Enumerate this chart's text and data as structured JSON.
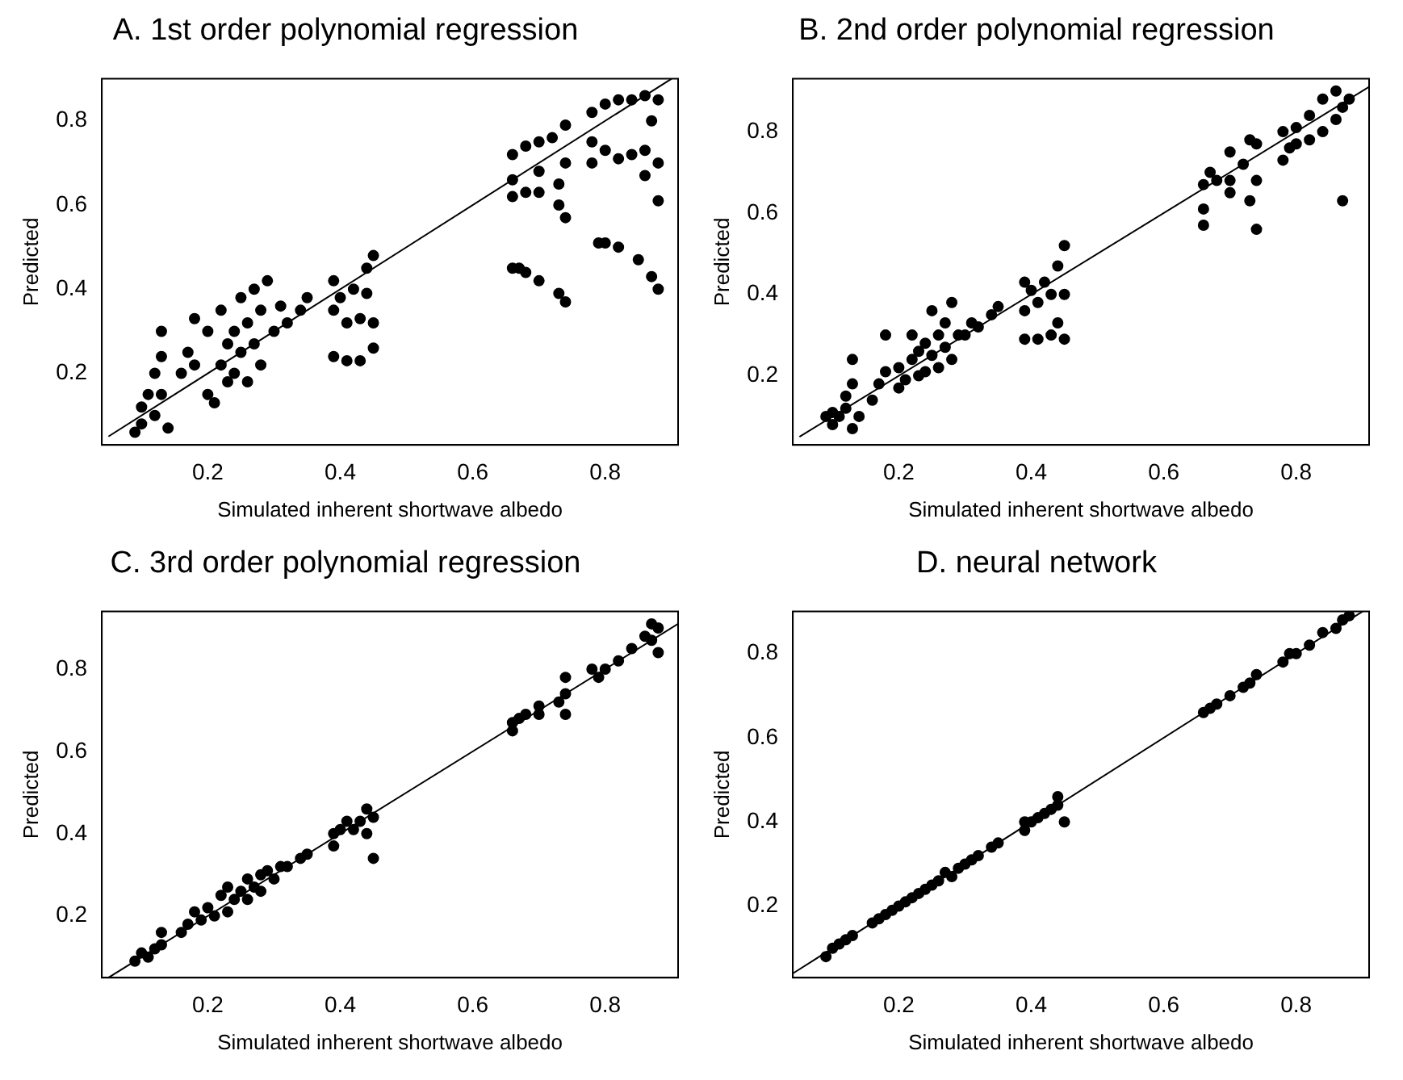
{
  "chart_data": [
    {
      "type": "scatter",
      "title": "A. 1st order polynomial regression",
      "xlabel": "Simulated inherent shortwave albedo",
      "ylabel": "Predicted",
      "xlim": [
        0.04,
        0.91
      ],
      "ylim": [
        0.03,
        0.9
      ],
      "xticks": [
        0.2,
        0.4,
        0.6,
        0.8
      ],
      "yticks": [
        0.2,
        0.4,
        0.6,
        0.8
      ],
      "grid": false,
      "legend": false,
      "marker": "circle",
      "series": [
        {
          "type": "scatter",
          "color": "#000000",
          "x": [
            0.09,
            0.1,
            0.1,
            0.11,
            0.12,
            0.12,
            0.13,
            0.13,
            0.13,
            0.14,
            0.16,
            0.17,
            0.18,
            0.18,
            0.2,
            0.2,
            0.21,
            0.22,
            0.22,
            0.23,
            0.23,
            0.24,
            0.24,
            0.25,
            0.25,
            0.26,
            0.26,
            0.27,
            0.27,
            0.28,
            0.28,
            0.29,
            0.3,
            0.31,
            0.32,
            0.34,
            0.35,
            0.39,
            0.39,
            0.39,
            0.4,
            0.41,
            0.41,
            0.42,
            0.43,
            0.43,
            0.44,
            0.44,
            0.45,
            0.45,
            0.45,
            0.66,
            0.66,
            0.66,
            0.66,
            0.67,
            0.68,
            0.68,
            0.68,
            0.7,
            0.7,
            0.7,
            0.7,
            0.72,
            0.73,
            0.73,
            0.73,
            0.74,
            0.74,
            0.74,
            0.74,
            0.78,
            0.78,
            0.78,
            0.79,
            0.8,
            0.8,
            0.8,
            0.82,
            0.82,
            0.82,
            0.84,
            0.84,
            0.85,
            0.86,
            0.86,
            0.86,
            0.87,
            0.87,
            0.88,
            0.88,
            0.88,
            0.88
          ],
          "values": [
            0.06,
            0.08,
            0.12,
            0.15,
            0.2,
            0.1,
            0.3,
            0.24,
            0.15,
            0.07,
            0.2,
            0.25,
            0.33,
            0.22,
            0.3,
            0.15,
            0.13,
            0.22,
            0.35,
            0.27,
            0.18,
            0.3,
            0.2,
            0.38,
            0.25,
            0.18,
            0.32,
            0.4,
            0.27,
            0.35,
            0.22,
            0.42,
            0.3,
            0.36,
            0.32,
            0.35,
            0.38,
            0.42,
            0.35,
            0.24,
            0.38,
            0.32,
            0.23,
            0.4,
            0.33,
            0.23,
            0.45,
            0.39,
            0.48,
            0.32,
            0.26,
            0.72,
            0.66,
            0.62,
            0.45,
            0.45,
            0.74,
            0.63,
            0.44,
            0.75,
            0.68,
            0.63,
            0.42,
            0.76,
            0.65,
            0.6,
            0.39,
            0.79,
            0.7,
            0.57,
            0.37,
            0.82,
            0.75,
            0.7,
            0.51,
            0.84,
            0.73,
            0.51,
            0.85,
            0.71,
            0.5,
            0.85,
            0.72,
            0.47,
            0.86,
            0.73,
            0.67,
            0.43,
            0.8,
            0.85,
            0.7,
            0.61,
            0.4
          ]
        },
        {
          "type": "line",
          "marker": "none",
          "color": "#000000",
          "x": [
            0.05,
            0.9
          ],
          "values": [
            0.05,
            0.9
          ]
        }
      ]
    },
    {
      "type": "scatter",
      "title": "B. 2nd order polynomial regression",
      "xlabel": "Simulated inherent shortwave albedo",
      "ylabel": "Predicted",
      "xlim": [
        0.04,
        0.91
      ],
      "ylim": [
        0.03,
        0.93
      ],
      "xticks": [
        0.2,
        0.4,
        0.6,
        0.8
      ],
      "yticks": [
        0.2,
        0.4,
        0.6,
        0.8
      ],
      "grid": false,
      "legend": false,
      "marker": "circle",
      "series": [
        {
          "type": "scatter",
          "color": "#000000",
          "x": [
            0.09,
            0.1,
            0.1,
            0.11,
            0.12,
            0.12,
            0.13,
            0.13,
            0.13,
            0.14,
            0.16,
            0.17,
            0.18,
            0.18,
            0.2,
            0.2,
            0.21,
            0.22,
            0.22,
            0.23,
            0.23,
            0.24,
            0.24,
            0.25,
            0.25,
            0.26,
            0.26,
            0.27,
            0.27,
            0.28,
            0.28,
            0.29,
            0.3,
            0.31,
            0.32,
            0.34,
            0.35,
            0.39,
            0.39,
            0.39,
            0.4,
            0.41,
            0.41,
            0.42,
            0.43,
            0.43,
            0.44,
            0.44,
            0.45,
            0.45,
            0.45,
            0.66,
            0.66,
            0.66,
            0.67,
            0.68,
            0.7,
            0.7,
            0.7,
            0.72,
            0.73,
            0.73,
            0.74,
            0.74,
            0.74,
            0.78,
            0.78,
            0.79,
            0.8,
            0.8,
            0.82,
            0.82,
            0.84,
            0.84,
            0.86,
            0.86,
            0.87,
            0.87,
            0.88
          ],
          "values": [
            0.1,
            0.11,
            0.08,
            0.1,
            0.15,
            0.12,
            0.24,
            0.18,
            0.07,
            0.1,
            0.14,
            0.18,
            0.3,
            0.21,
            0.22,
            0.17,
            0.19,
            0.24,
            0.3,
            0.26,
            0.2,
            0.28,
            0.21,
            0.36,
            0.25,
            0.22,
            0.3,
            0.33,
            0.27,
            0.38,
            0.24,
            0.3,
            0.3,
            0.33,
            0.32,
            0.35,
            0.37,
            0.43,
            0.36,
            0.29,
            0.41,
            0.38,
            0.29,
            0.43,
            0.4,
            0.3,
            0.47,
            0.33,
            0.52,
            0.4,
            0.29,
            0.67,
            0.61,
            0.57,
            0.7,
            0.68,
            0.75,
            0.68,
            0.65,
            0.72,
            0.78,
            0.63,
            0.77,
            0.68,
            0.56,
            0.8,
            0.73,
            0.76,
            0.81,
            0.77,
            0.84,
            0.78,
            0.88,
            0.8,
            0.9,
            0.83,
            0.63,
            0.86,
            0.88
          ]
        },
        {
          "type": "line",
          "marker": "none",
          "color": "#000000",
          "x": [
            0.05,
            0.91
          ],
          "values": [
            0.05,
            0.91
          ]
        }
      ]
    },
    {
      "type": "scatter",
      "title": "C. 3rd order polynomial regression",
      "xlabel": "Simulated inherent shortwave albedo",
      "ylabel": "Predicted",
      "xlim": [
        0.04,
        0.91
      ],
      "ylim": [
        0.05,
        0.94
      ],
      "xticks": [
        0.2,
        0.4,
        0.6,
        0.8
      ],
      "yticks": [
        0.2,
        0.4,
        0.6,
        0.8
      ],
      "grid": false,
      "legend": false,
      "marker": "circle",
      "series": [
        {
          "type": "scatter",
          "color": "#000000",
          "x": [
            0.09,
            0.1,
            0.11,
            0.12,
            0.13,
            0.13,
            0.16,
            0.17,
            0.18,
            0.19,
            0.2,
            0.21,
            0.22,
            0.23,
            0.23,
            0.24,
            0.25,
            0.26,
            0.26,
            0.27,
            0.28,
            0.28,
            0.29,
            0.3,
            0.31,
            0.32,
            0.34,
            0.35,
            0.39,
            0.39,
            0.4,
            0.41,
            0.42,
            0.43,
            0.44,
            0.44,
            0.45,
            0.45,
            0.66,
            0.66,
            0.67,
            0.68,
            0.7,
            0.7,
            0.73,
            0.74,
            0.74,
            0.74,
            0.78,
            0.79,
            0.8,
            0.82,
            0.84,
            0.86,
            0.87,
            0.87,
            0.88,
            0.88
          ],
          "values": [
            0.09,
            0.11,
            0.1,
            0.12,
            0.16,
            0.13,
            0.16,
            0.18,
            0.21,
            0.19,
            0.22,
            0.2,
            0.25,
            0.27,
            0.21,
            0.24,
            0.26,
            0.29,
            0.24,
            0.27,
            0.3,
            0.26,
            0.31,
            0.29,
            0.32,
            0.32,
            0.34,
            0.35,
            0.4,
            0.37,
            0.41,
            0.43,
            0.41,
            0.43,
            0.46,
            0.4,
            0.44,
            0.34,
            0.67,
            0.65,
            0.68,
            0.69,
            0.71,
            0.69,
            0.72,
            0.78,
            0.74,
            0.69,
            0.8,
            0.78,
            0.8,
            0.82,
            0.85,
            0.88,
            0.91,
            0.87,
            0.9,
            0.84
          ]
        },
        {
          "type": "line",
          "marker": "none",
          "color": "#000000",
          "x": [
            0.05,
            0.91
          ],
          "values": [
            0.05,
            0.91
          ]
        }
      ]
    },
    {
      "type": "scatter",
      "title": "D. neural network",
      "xlabel": "Simulated inherent shortwave albedo",
      "ylabel": "Predicted",
      "xlim": [
        0.04,
        0.91
      ],
      "ylim": [
        0.03,
        0.9
      ],
      "xticks": [
        0.2,
        0.4,
        0.6,
        0.8
      ],
      "yticks": [
        0.2,
        0.4,
        0.6,
        0.8
      ],
      "grid": false,
      "legend": false,
      "marker": "circle",
      "series": [
        {
          "type": "scatter",
          "color": "#000000",
          "x": [
            0.09,
            0.1,
            0.11,
            0.12,
            0.13,
            0.16,
            0.17,
            0.18,
            0.19,
            0.2,
            0.21,
            0.22,
            0.23,
            0.24,
            0.25,
            0.26,
            0.27,
            0.28,
            0.29,
            0.3,
            0.31,
            0.32,
            0.34,
            0.35,
            0.39,
            0.39,
            0.4,
            0.41,
            0.42,
            0.43,
            0.44,
            0.44,
            0.45,
            0.66,
            0.67,
            0.68,
            0.7,
            0.72,
            0.73,
            0.74,
            0.78,
            0.79,
            0.8,
            0.82,
            0.84,
            0.86,
            0.87,
            0.88
          ],
          "values": [
            0.08,
            0.1,
            0.11,
            0.12,
            0.13,
            0.16,
            0.17,
            0.18,
            0.19,
            0.2,
            0.21,
            0.22,
            0.23,
            0.24,
            0.25,
            0.26,
            0.28,
            0.27,
            0.29,
            0.3,
            0.31,
            0.32,
            0.34,
            0.35,
            0.38,
            0.4,
            0.4,
            0.41,
            0.42,
            0.43,
            0.44,
            0.46,
            0.4,
            0.66,
            0.67,
            0.68,
            0.7,
            0.72,
            0.73,
            0.75,
            0.78,
            0.8,
            0.8,
            0.82,
            0.85,
            0.86,
            0.88,
            0.89
          ]
        },
        {
          "type": "line",
          "marker": "none",
          "color": "#000000",
          "x": [
            0.04,
            0.9
          ],
          "values": [
            0.04,
            0.9
          ]
        }
      ]
    }
  ]
}
